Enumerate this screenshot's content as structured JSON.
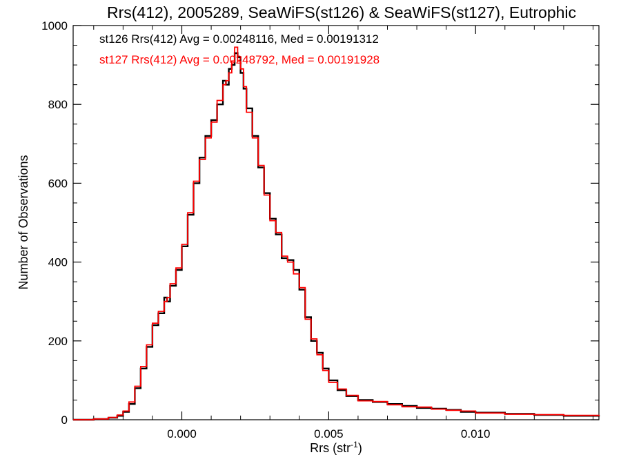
{
  "chart_data": {
    "type": "line",
    "title": "Rrs(412), 2005289, SeaWiFS(st126) & SeaWiFS(st127), Eutrophic",
    "xlabel": "Rrs (str",
    "xlabel_sup": "-1",
    "xlabel_tail": ")",
    "ylabel": "Number of Observations",
    "xlim": [
      -0.0037,
      0.0142
    ],
    "ylim": [
      0,
      1000
    ],
    "xticks": [
      0.0,
      0.005,
      0.01
    ],
    "xtick_labels": [
      "0.000",
      "0.005",
      "0.010"
    ],
    "yticks": [
      0,
      200,
      400,
      600,
      800,
      1000
    ],
    "ytick_labels": [
      "0",
      "200",
      "400",
      "600",
      "800",
      "1000"
    ],
    "grid": false,
    "annotations": [
      "st126 Rrs(412) Avg = 0.00248116, Med = 0.00191312",
      "st127 Rrs(412) Avg = 0.00248792, Med = 0.00191928"
    ],
    "series": [
      {
        "color": "#000000",
        "x": [
          -0.0037,
          -0.003,
          -0.0025,
          -0.0022,
          -0.002,
          -0.0018,
          -0.0016,
          -0.0014,
          -0.0012,
          -0.001,
          -0.0008,
          -0.0006,
          -0.0005,
          -0.0004,
          -0.0002,
          0.0,
          0.0002,
          0.0004,
          0.0006,
          0.0008,
          0.001,
          0.0012,
          0.0014,
          0.0015,
          0.0016,
          0.0017,
          0.0018,
          0.0019,
          0.002,
          0.0021,
          0.0022,
          0.0024,
          0.0026,
          0.0028,
          0.003,
          0.0032,
          0.0034,
          0.0036,
          0.0038,
          0.004,
          0.0042,
          0.0044,
          0.0046,
          0.0048,
          0.005,
          0.0053,
          0.0056,
          0.006,
          0.0065,
          0.007,
          0.0075,
          0.008,
          0.0085,
          0.009,
          0.0095,
          0.01,
          0.011,
          0.012,
          0.013,
          0.0142
        ],
        "y": [
          0,
          2,
          5,
          10,
          20,
          40,
          80,
          130,
          185,
          240,
          270,
          310,
          300,
          340,
          380,
          440,
          520,
          600,
          665,
          720,
          760,
          800,
          860,
          850,
          890,
          900,
          930,
          920,
          880,
          840,
          790,
          720,
          640,
          575,
          510,
          470,
          410,
          405,
          380,
          330,
          260,
          200,
          170,
          130,
          100,
          75,
          60,
          50,
          45,
          40,
          35,
          30,
          28,
          25,
          20,
          18,
          15,
          12,
          10,
          8
        ]
      },
      {
        "color": "#ff0000",
        "x": [
          -0.0037,
          -0.003,
          -0.0025,
          -0.0022,
          -0.002,
          -0.0018,
          -0.0016,
          -0.0014,
          -0.0012,
          -0.001,
          -0.0008,
          -0.0006,
          -0.0005,
          -0.0004,
          -0.0002,
          0.0,
          0.0002,
          0.0004,
          0.0006,
          0.0008,
          0.001,
          0.0012,
          0.0014,
          0.0015,
          0.0016,
          0.0017,
          0.0018,
          0.0019,
          0.002,
          0.0021,
          0.0022,
          0.0024,
          0.0026,
          0.0028,
          0.003,
          0.0032,
          0.0034,
          0.0036,
          0.0038,
          0.004,
          0.0042,
          0.0044,
          0.0046,
          0.0048,
          0.005,
          0.0053,
          0.0056,
          0.006,
          0.0065,
          0.007,
          0.0075,
          0.008,
          0.0085,
          0.009,
          0.0095,
          0.01,
          0.011,
          0.012,
          0.013,
          0.0142
        ],
        "y": [
          0,
          2,
          6,
          12,
          22,
          45,
          85,
          135,
          190,
          245,
          275,
          300,
          310,
          345,
          385,
          445,
          525,
          605,
          660,
          715,
          755,
          810,
          850,
          860,
          880,
          910,
          945,
          910,
          890,
          845,
          780,
          715,
          645,
          570,
          505,
          475,
          415,
          400,
          370,
          335,
          255,
          205,
          165,
          125,
          95,
          78,
          62,
          48,
          46,
          38,
          33,
          32,
          27,
          24,
          22,
          17,
          14,
          13,
          11,
          9
        ]
      }
    ]
  }
}
